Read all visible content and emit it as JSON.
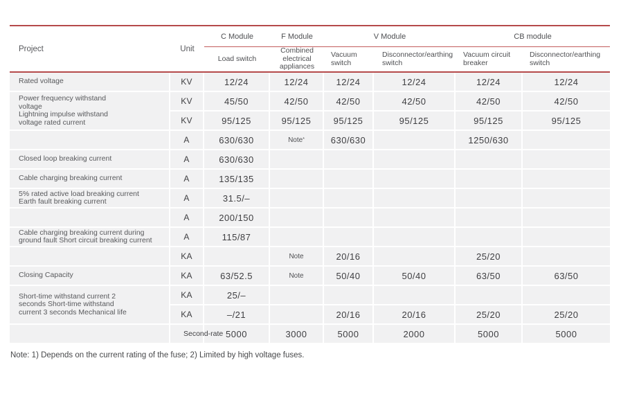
{
  "colors": {
    "rule_red": "#b5494a",
    "rule_red_thin": "#c25b5b",
    "cell_bg": "#f1f1f2",
    "value_text": "#3e3e41",
    "label_text": "#58595c"
  },
  "chart_data": {
    "type": "table",
    "header": {
      "project": "Project",
      "unit": "Unit",
      "groups": [
        "C Module",
        "F Module",
        "V Module",
        "CB module"
      ],
      "columns": [
        "Load switch",
        "Combined electrical appliances",
        "Vacuum switch",
        "Disconnector/earthing switch",
        "Vacuum circuit breaker",
        "Disconnector/earthing switch"
      ]
    },
    "r": [
      {
        "p": "Rated voltage",
        "u": "KV",
        "c": "12/24",
        "f": "12/24",
        "v1": "12/24",
        "v2": "12/24",
        "b1": "12/24",
        "b2": "12/24"
      },
      {
        "p": "Power frequency withstand\nvoltage\nLightning impulse withstand\nvoltage rated current",
        "u": "KV",
        "c": "45/50",
        "f": "42/50",
        "v1": "42/50",
        "v2": "42/50",
        "b1": "42/50",
        "b2": "42/50"
      },
      {
        "u": "KV",
        "c": "95/125",
        "f": "95/125",
        "v1": "95/125",
        "v2": "95/125",
        "b1": "95/125",
        "b2": "95/125"
      },
      {
        "p": "",
        "u": "A",
        "c": "630/630",
        "f": "Note",
        "fsup": "*",
        "v1": "630/630",
        "v2": "",
        "b1": "1250/630",
        "b2": ""
      },
      {
        "p": "Closed loop breaking current",
        "u": "A",
        "c": "630/630",
        "f": "",
        "v1": "",
        "v2": "",
        "b1": "",
        "b2": ""
      },
      {
        "p": "Cable charging breaking current",
        "u": "A",
        "c": "135/135",
        "f": "",
        "v1": "",
        "v2": "",
        "b1": "",
        "b2": ""
      },
      {
        "p": "5% rated active load breaking current\nEarth fault breaking current",
        "u": "A",
        "c": "31.5/–",
        "f": "",
        "v1": "",
        "v2": "",
        "b1": "",
        "b2": ""
      },
      {
        "p": "",
        "u": "A",
        "c": "200/150",
        "f": "",
        "v1": "",
        "v2": "",
        "b1": "",
        "b2": ""
      },
      {
        "p": "Cable charging breaking current during\nground fault Short circuit breaking current",
        "u": "A",
        "c": "115/87",
        "f": "",
        "v1": "",
        "v2": "",
        "b1": "",
        "b2": ""
      },
      {
        "p": "",
        "u": "KA",
        "c": "",
        "f": "Note",
        "v1": "20/16",
        "v2": "",
        "b1": "25/20",
        "b2": ""
      },
      {
        "p": "Closing Capacity",
        "u": "KA",
        "c": "63/52.5",
        "f": "Note",
        "v1": "50/40",
        "v2": "50/40",
        "b1": "63/50",
        "b2": "63/50"
      },
      {
        "p": "Short-time withstand current 2\nseconds Short-time withstand\ncurrent 3 seconds Mechanical life",
        "u": "KA",
        "c": "25/–",
        "f": "",
        "v1": "",
        "v2": "",
        "b1": "",
        "b2": ""
      },
      {
        "u": "KA",
        "c": "–/21",
        "f": "",
        "v1": "20/16",
        "v2": "20/16",
        "b1": "25/20",
        "b2": "25/20"
      },
      {
        "p": "",
        "u": "Second-rate",
        "c": "5000",
        "f": "3000",
        "v1": "5000",
        "v2": "2000",
        "b1": "5000",
        "b2": "5000"
      }
    ]
  },
  "footnote": "Note: 1) Depends on the current rating of the fuse; 2) Limited by high voltage fuses."
}
